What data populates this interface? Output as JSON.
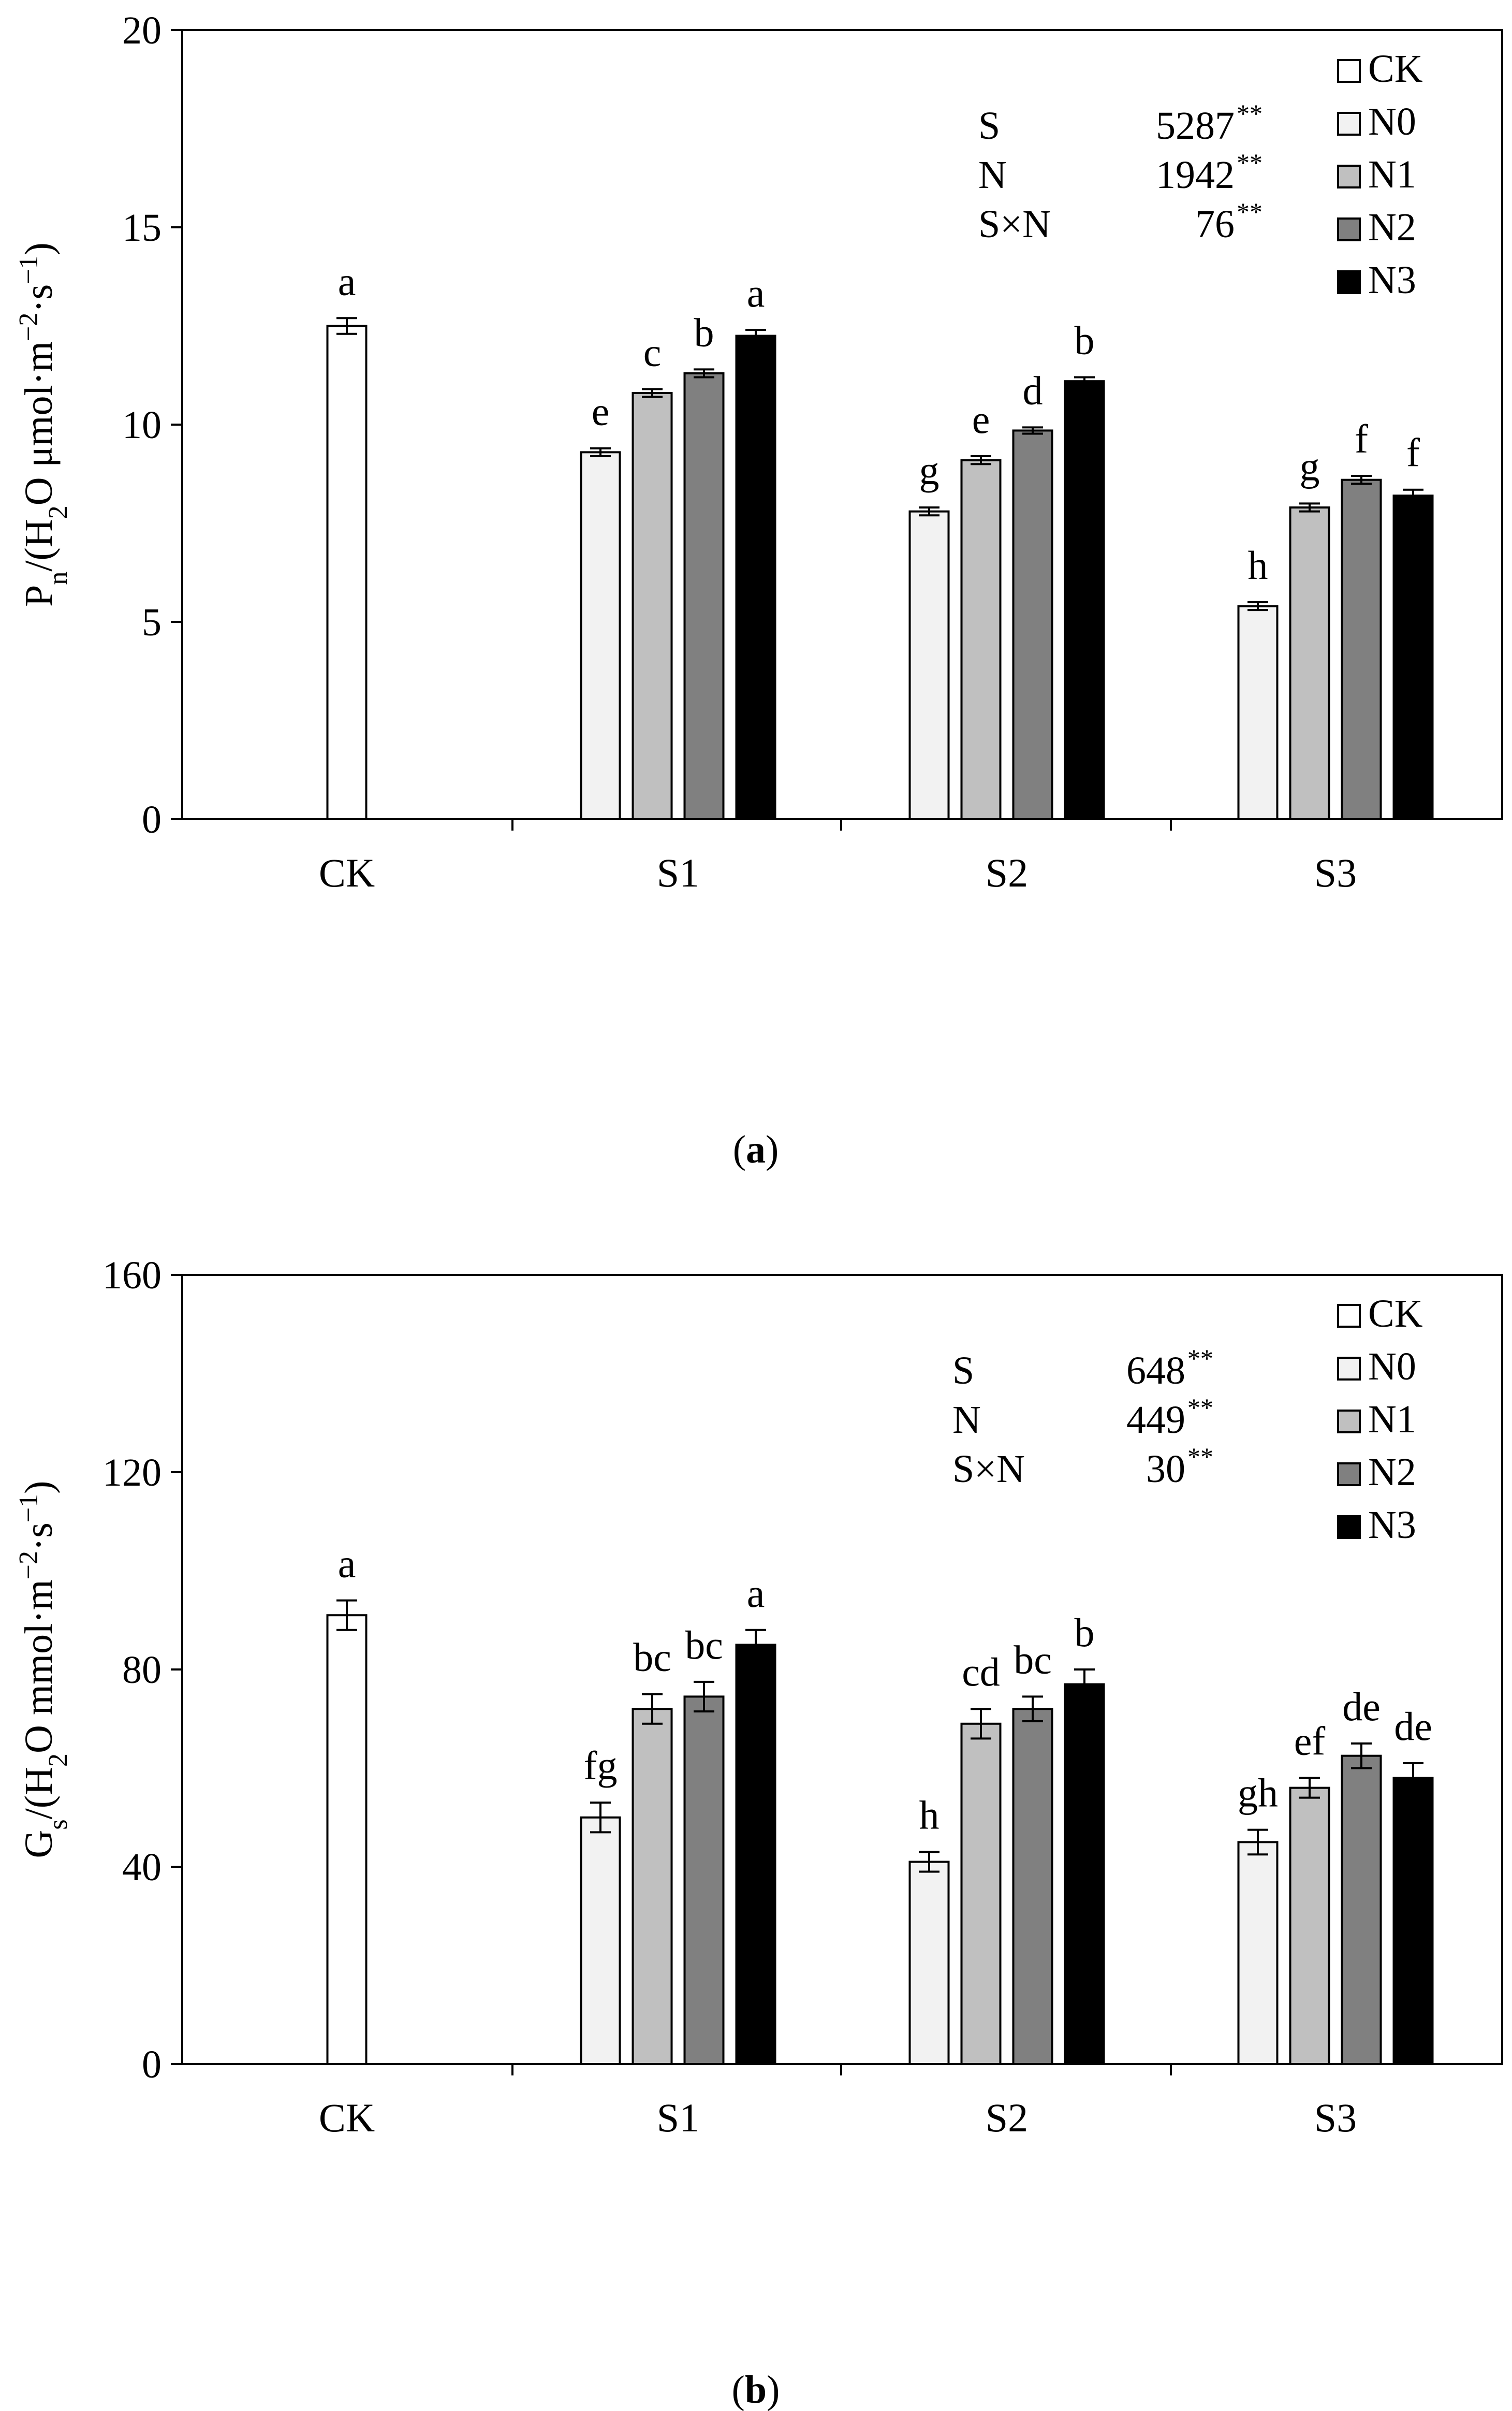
{
  "chart_data": [
    {
      "type": "bar",
      "panel_label": "a",
      "ylabel": {
        "main": "P",
        "sub": "n",
        "text1": "/(H",
        "sub2": "2",
        "text2": "O μmol·m",
        "sup1": "−2",
        "text3": "·s",
        "sup2": "−1",
        "text4": ")"
      },
      "ylim": [
        0,
        20
      ],
      "yticks": [
        "0",
        "5",
        "10",
        "15",
        "20"
      ],
      "categories": [
        "CK",
        "S1",
        "S2",
        "S3"
      ],
      "series": [
        {
          "name": "CK",
          "color": "#ffffff",
          "values": [
            12.5,
            null,
            null,
            null
          ],
          "errors": [
            0.2,
            null,
            null,
            null
          ],
          "letters": [
            "a",
            null,
            null,
            null
          ]
        },
        {
          "name": "N0",
          "color": "#f2f2f2",
          "values": [
            null,
            9.3,
            7.8,
            5.4
          ],
          "errors": [
            null,
            0.1,
            0.1,
            0.1
          ],
          "letters": [
            null,
            "e",
            "g",
            "h"
          ]
        },
        {
          "name": "N1",
          "color": "#c0c0c0",
          "values": [
            null,
            10.8,
            9.1,
            7.9
          ],
          "errors": [
            null,
            0.1,
            0.1,
            0.1
          ],
          "letters": [
            null,
            "c",
            "e",
            "g"
          ]
        },
        {
          "name": "N2",
          "color": "#808080",
          "values": [
            null,
            11.3,
            9.85,
            8.6
          ],
          "errors": [
            null,
            0.1,
            0.08,
            0.1
          ],
          "letters": [
            null,
            "b",
            "d",
            "f"
          ]
        },
        {
          "name": "N3",
          "color": "#000000",
          "values": [
            null,
            12.25,
            11.1,
            8.2
          ],
          "errors": [
            null,
            0.15,
            0.1,
            0.15
          ],
          "letters": [
            null,
            "a",
            "b",
            "f"
          ]
        }
      ],
      "stats": [
        {
          "label": "S",
          "value": "5287",
          "sig": "**"
        },
        {
          "label": "N",
          "value": "1942",
          "sig": "**"
        },
        {
          "label": "S×N",
          "value": "76",
          "sig": "**"
        }
      ]
    },
    {
      "type": "bar",
      "panel_label": "b",
      "ylabel": {
        "main": "G",
        "sub": "s",
        "text1": "/(H",
        "sub2": "2",
        "text2": "O mmol·m",
        "sup1": "−2",
        "text3": "·s",
        "sup2": "−1",
        "text4": ")"
      },
      "ylim": [
        0,
        160
      ],
      "yticks": [
        "0",
        "40",
        "80",
        "120",
        "160"
      ],
      "categories": [
        "CK",
        "S1",
        "S2",
        "S3"
      ],
      "series": [
        {
          "name": "CK",
          "color": "#ffffff",
          "values": [
            91,
            null,
            null,
            null
          ],
          "errors": [
            3,
            null,
            null,
            null
          ],
          "letters": [
            "a",
            null,
            null,
            null
          ]
        },
        {
          "name": "N0",
          "color": "#f2f2f2",
          "values": [
            null,
            50,
            41,
            45
          ],
          "errors": [
            null,
            3,
            2,
            2.5
          ],
          "letters": [
            null,
            "fg",
            "h",
            "gh"
          ]
        },
        {
          "name": "N1",
          "color": "#c0c0c0",
          "values": [
            null,
            72,
            69,
            56
          ],
          "errors": [
            null,
            3,
            3,
            2
          ],
          "letters": [
            null,
            "bc",
            "cd",
            "ef"
          ]
        },
        {
          "name": "N2",
          "color": "#808080",
          "values": [
            null,
            74.5,
            72,
            62.5
          ],
          "errors": [
            null,
            3,
            2.5,
            2.5
          ],
          "letters": [
            null,
            "bc",
            "bc",
            "de"
          ]
        },
        {
          "name": "N3",
          "color": "#000000",
          "values": [
            null,
            85,
            77,
            58
          ],
          "errors": [
            null,
            3,
            3,
            3
          ],
          "letters": [
            null,
            "a",
            "b",
            "de"
          ]
        }
      ],
      "stats": [
        {
          "label": "S",
          "value": "648",
          "sig": "**"
        },
        {
          "label": "N",
          "value": "449",
          "sig": "**"
        },
        {
          "label": "S×N",
          "value": "30",
          "sig": "**"
        }
      ]
    }
  ]
}
